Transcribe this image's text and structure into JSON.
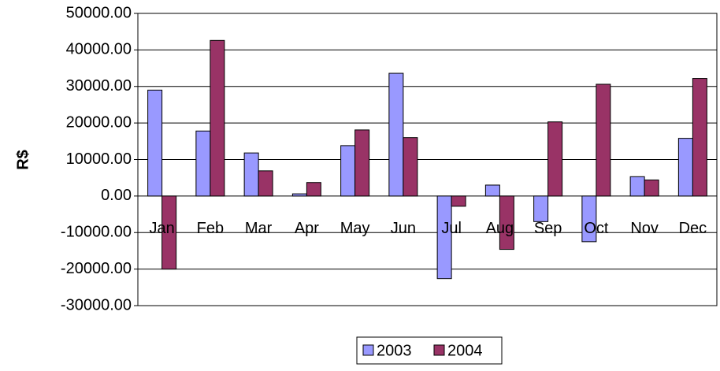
{
  "chart_data": {
    "type": "bar",
    "y_label": "R$",
    "categories": [
      "Jan",
      "Feb",
      "Mar",
      "Apr",
      "May",
      "Jun",
      "Jul",
      "Aug",
      "Sep",
      "Oct",
      "Nov",
      "Dec"
    ],
    "series": [
      {
        "name": "2003",
        "color": "#9999ff",
        "values": [
          29000,
          17800,
          11800,
          600,
          13800,
          33600,
          -22600,
          3000,
          -7000,
          -12500,
          5300,
          15800
        ]
      },
      {
        "name": "2004",
        "color": "#993366",
        "values": [
          -20000,
          42600,
          6900,
          3700,
          18100,
          16000,
          -2800,
          -14600,
          20300,
          30600,
          4400,
          32200
        ]
      }
    ],
    "ylim": [
      -30000,
      50000
    ],
    "yticks": [
      {
        "value": -30000,
        "label": "-30000.00"
      },
      {
        "value": -20000,
        "label": "-20000.00"
      },
      {
        "value": -10000,
        "label": "-10000.00"
      },
      {
        "value": 0,
        "label": "0.00"
      },
      {
        "value": 10000,
        "label": "10000.00"
      },
      {
        "value": 20000,
        "label": "20000.00"
      },
      {
        "value": 30000,
        "label": "30000.00"
      },
      {
        "value": 40000,
        "label": "40000.00"
      },
      {
        "value": 50000,
        "label": "50000.00"
      }
    ],
    "grid": true,
    "legend": "bottom"
  }
}
